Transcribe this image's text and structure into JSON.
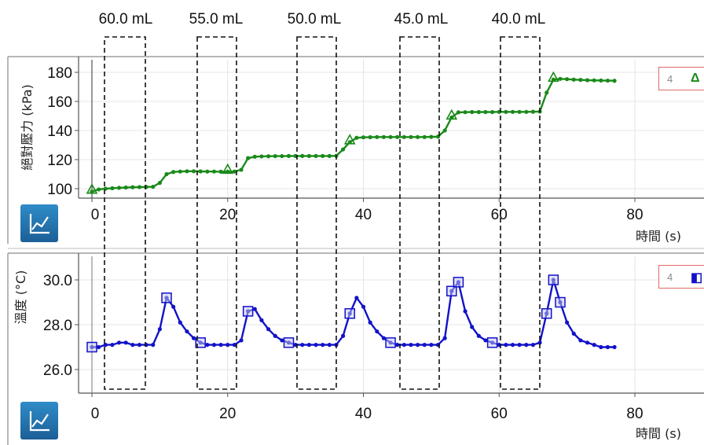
{
  "colors": {
    "pressure": "#1a8a1a",
    "temperature": "#1212c8",
    "icon_bg": "#2576b4",
    "legend_border": "#e06a6a",
    "divider": "#999999"
  },
  "volume_labels": [
    "60.0 mL",
    "55.0 mL",
    "50.0 mL",
    "45.0 mL",
    "40.0 mL"
  ],
  "pressure_legend": {
    "number": "4",
    "symbol": "Δ"
  },
  "temperature_legend": {
    "number": "4",
    "symbol": "◧"
  },
  "chart_data": [
    {
      "type": "line",
      "title": "",
      "xlabel": "時間 (s)",
      "ylabel": "絕對壓力 (kPa)",
      "xlim": [
        -2,
        88
      ],
      "ylim": [
        94,
        186
      ],
      "x_ticks": [
        0,
        20,
        40,
        60,
        80
      ],
      "x_tick_labels": [
        "0",
        "20",
        "40",
        "60",
        "80"
      ],
      "y_ticks": [
        100,
        120,
        140,
        160,
        180
      ],
      "y_tick_labels": [
        "100",
        "120",
        "140",
        "160",
        "180"
      ],
      "grid": true,
      "marker": "triangle",
      "series": [
        {
          "x": [
            0,
            1,
            2,
            3,
            4,
            5,
            6,
            7,
            8,
            9,
            10,
            11,
            12,
            13,
            14,
            15,
            16,
            17,
            18,
            19,
            20,
            21,
            22,
            23,
            24,
            25,
            26,
            27,
            28,
            29,
            30,
            31,
            32,
            33,
            34,
            35,
            36,
            37,
            38,
            39,
            40,
            41,
            42,
            43,
            44,
            45,
            46,
            47,
            48,
            49,
            50,
            51,
            52,
            53,
            54,
            55,
            56,
            57,
            58,
            59,
            60,
            61,
            62,
            63,
            64,
            65,
            66,
            67,
            68,
            69,
            70,
            71,
            72,
            73,
            74,
            75,
            76,
            77
          ],
          "y": [
            98,
            99.5,
            100,
            100.3,
            100.6,
            100.8,
            101,
            101.1,
            101.2,
            101.3,
            104,
            110,
            111.5,
            111.8,
            112,
            112,
            111.9,
            111.8,
            111.8,
            111.7,
            111.7,
            111.8,
            113,
            121,
            122,
            122.2,
            122.3,
            122.4,
            122.4,
            122.5,
            122.5,
            122.5,
            122.5,
            122.5,
            122.5,
            122.5,
            122.6,
            127,
            132,
            135,
            135.3,
            135.4,
            135.5,
            135.5,
            135.5,
            135.5,
            135.5,
            135.5,
            135.5,
            135.5,
            135.6,
            135.8,
            140,
            149,
            152.5,
            152.6,
            152.7,
            152.7,
            152.7,
            152.7,
            152.8,
            152.8,
            152.8,
            152.8,
            152.8,
            152.9,
            153,
            166,
            175,
            175.5,
            175.3,
            175,
            174.8,
            174.6,
            174.5,
            174.4,
            174.3,
            174.2
          ]
        }
      ]
    },
    {
      "type": "line",
      "title": "",
      "xlabel": "時間 (s)",
      "ylabel": "溫度 (°C)",
      "xlim": [
        -2,
        88
      ],
      "ylim": [
        25,
        31
      ],
      "x_ticks": [
        0,
        20,
        40,
        60,
        80
      ],
      "x_tick_labels": [
        "0",
        "20",
        "40",
        "60",
        "80"
      ],
      "y_ticks": [
        26.0,
        28.0,
        30.0
      ],
      "y_tick_labels": [
        "26.0",
        "28.0",
        "30.0"
      ],
      "grid": true,
      "marker": "square",
      "series": [
        {
          "x": [
            0,
            1,
            2,
            3,
            4,
            5,
            6,
            7,
            8,
            9,
            10,
            11,
            12,
            13,
            14,
            15,
            16,
            17,
            18,
            19,
            20,
            21,
            22,
            23,
            24,
            25,
            26,
            27,
            28,
            29,
            30,
            31,
            32,
            33,
            34,
            35,
            36,
            37,
            38,
            39,
            40,
            41,
            42,
            43,
            44,
            45,
            46,
            47,
            48,
            49,
            50,
            51,
            52,
            53,
            54,
            55,
            56,
            57,
            58,
            59,
            60,
            61,
            62,
            63,
            64,
            65,
            66,
            67,
            68,
            69,
            70,
            71,
            72,
            73,
            74,
            75,
            76,
            77
          ],
          "y": [
            27.0,
            27.0,
            27.1,
            27.1,
            27.2,
            27.2,
            27.1,
            27.1,
            27.1,
            27.1,
            27.8,
            29.2,
            28.8,
            28.1,
            27.7,
            27.4,
            27.2,
            27.1,
            27.1,
            27.1,
            27.1,
            27.1,
            27.3,
            28.6,
            28.7,
            28.2,
            27.8,
            27.5,
            27.3,
            27.2,
            27.1,
            27.1,
            27.1,
            27.1,
            27.1,
            27.1,
            27.1,
            27.5,
            28.5,
            29.2,
            28.8,
            28.1,
            27.7,
            27.4,
            27.2,
            27.1,
            27.1,
            27.1,
            27.1,
            27.1,
            27.1,
            27.1,
            27.4,
            29.5,
            29.9,
            28.6,
            27.9,
            27.5,
            27.3,
            27.2,
            27.1,
            27.1,
            27.1,
            27.1,
            27.1,
            27.1,
            27.2,
            28.5,
            30.0,
            29.0,
            28.1,
            27.6,
            27.3,
            27.2,
            27.1,
            27.0,
            27.0,
            27.0
          ]
        }
      ]
    }
  ]
}
